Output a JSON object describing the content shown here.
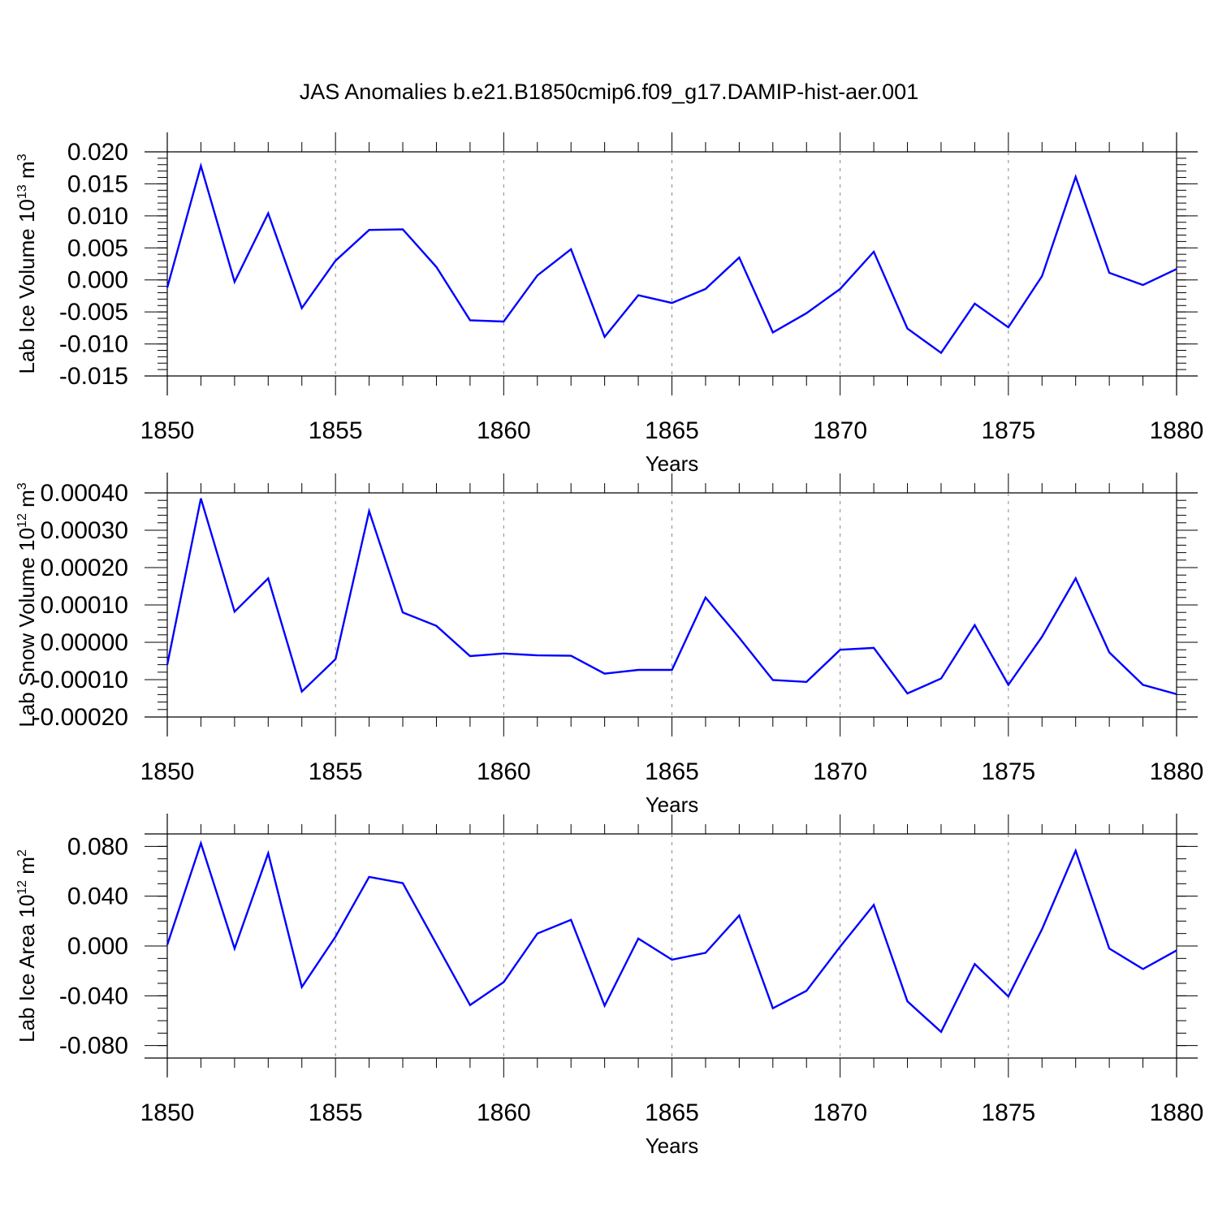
{
  "title": "JAS Anomalies b.e21.B1850cmip6.f09_g17.DAMIP-hist-aer.001",
  "line_color": "#0000ff",
  "chart_data": [
    {
      "type": "line",
      "title": "",
      "xlabel": "Years",
      "ylabel": "Lab Ice Volume 10",
      "ylabel_sup": "13",
      "ylabel_unit": " m",
      "ylabel_unit_sup": "3",
      "xlim": [
        1850,
        1880
      ],
      "ylim": [
        -0.015,
        0.02
      ],
      "ytick_step": 0.005,
      "ytick_decimals": 3,
      "yminor": 4,
      "xticks": [
        1850,
        1855,
        1860,
        1865,
        1870,
        1875,
        1880
      ],
      "grid": "vertical dashed at major x ticks",
      "x": [
        1850,
        1851,
        1852,
        1853,
        1854,
        1855,
        1856,
        1857,
        1858,
        1859,
        1860,
        1861,
        1862,
        1863,
        1864,
        1865,
        1866,
        1867,
        1868,
        1869,
        1870,
        1871,
        1872,
        1873,
        1874,
        1875,
        1876,
        1877,
        1878,
        1879,
        1880
      ],
      "series": [
        {
          "values": [
            -0.0012,
            0.0178,
            -0.0003,
            0.0104,
            -0.0044,
            0.003,
            0.0078,
            0.0079,
            0.002,
            -0.0063,
            -0.0065,
            0.0007,
            0.0048,
            -0.0089,
            -0.0024,
            -0.0036,
            -0.0014,
            0.0035,
            -0.0082,
            -0.0052,
            -0.0014,
            0.0044,
            -0.0076,
            -0.0114,
            -0.0037,
            -0.0074,
            0.0006,
            0.0161,
            0.0011,
            -0.0008,
            0.0017
          ]
        }
      ]
    },
    {
      "type": "line",
      "title": "",
      "xlabel": "Years",
      "ylabel": "Lab Snow Volume 10",
      "ylabel_sup": "12",
      "ylabel_unit": " m",
      "ylabel_unit_sup": "3",
      "xlim": [
        1850,
        1880
      ],
      "ylim": [
        -0.0002,
        0.0004
      ],
      "ytick_step": 0.0001,
      "ytick_decimals": 5,
      "yminor": 4,
      "xticks": [
        1850,
        1855,
        1860,
        1865,
        1870,
        1875,
        1880
      ],
      "grid": "vertical dashed at major x ticks",
      "x": [
        1850,
        1851,
        1852,
        1853,
        1854,
        1855,
        1856,
        1857,
        1858,
        1859,
        1860,
        1861,
        1862,
        1863,
        1864,
        1865,
        1866,
        1867,
        1868,
        1869,
        1870,
        1871,
        1872,
        1873,
        1874,
        1875,
        1876,
        1877,
        1878,
        1879,
        1880
      ],
      "series": [
        {
          "values": [
            -6e-05,
            0.000385,
            8.2e-05,
            0.000171,
            -0.000132,
            -4.5e-05,
            0.000351,
            8e-05,
            4.4e-05,
            -3.7e-05,
            -3e-05,
            -3.5e-05,
            -3.6e-05,
            -8.4e-05,
            -7.4e-05,
            -7.4e-05,
            0.00012,
            1.2e-05,
            -0.000101,
            -0.000106,
            -2e-05,
            -1.5e-05,
            -0.000137,
            -9.7e-05,
            4.6e-05,
            -0.000114,
            1.5e-05,
            0.000171,
            -2.7e-05,
            -0.000114,
            -0.000139
          ]
        }
      ]
    },
    {
      "type": "line",
      "title": "",
      "xlabel": "Years",
      "ylabel": "Lab Ice Area 10",
      "ylabel_sup": "12",
      "ylabel_unit": " m",
      "ylabel_unit_sup": "2",
      "xlim": [
        1850,
        1880
      ],
      "ylim": [
        -0.09,
        0.09
      ],
      "yticks": [
        -0.08,
        -0.04,
        0.0,
        0.04,
        0.08
      ],
      "ytick_decimals": 3,
      "yminor_step": 0.01,
      "xticks": [
        1850,
        1855,
        1860,
        1865,
        1870,
        1875,
        1880
      ],
      "grid": "vertical dashed at major x ticks",
      "x": [
        1850,
        1851,
        1852,
        1853,
        1854,
        1855,
        1856,
        1857,
        1858,
        1859,
        1860,
        1861,
        1862,
        1863,
        1864,
        1865,
        1866,
        1867,
        1868,
        1869,
        1870,
        1871,
        1872,
        1873,
        1874,
        1875,
        1876,
        1877,
        1878,
        1879,
        1880
      ],
      "series": [
        {
          "values": [
            0.001,
            0.0825,
            -0.002,
            0.0745,
            -0.033,
            0.0075,
            0.0555,
            0.0505,
            0.0015,
            -0.0475,
            -0.029,
            0.01,
            0.021,
            -0.048,
            0.006,
            -0.011,
            -0.0055,
            0.0245,
            -0.05,
            -0.036,
            -0.0005,
            0.033,
            -0.0445,
            -0.069,
            -0.0145,
            -0.0405,
            0.0135,
            0.0765,
            -0.002,
            -0.0185,
            -0.0035
          ]
        }
      ]
    }
  ]
}
